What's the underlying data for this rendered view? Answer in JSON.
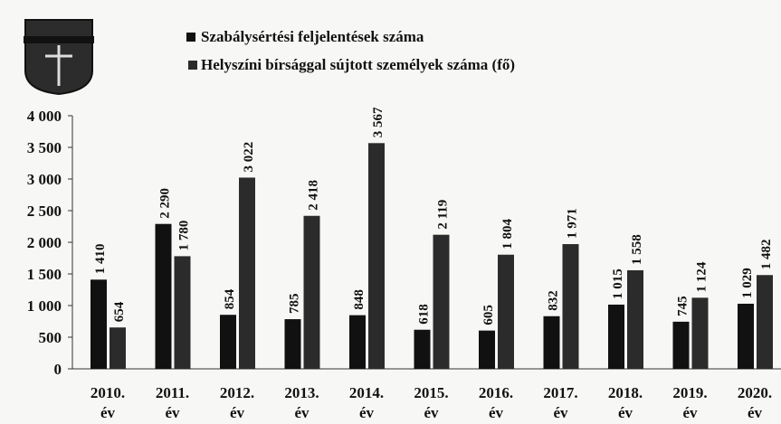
{
  "chart_data": {
    "type": "bar",
    "categories": [
      "2010. év",
      "2011. év",
      "2012. év",
      "2013. év",
      "2014. év",
      "2015. év",
      "2016. év",
      "2017. év",
      "2018. év",
      "2019. év",
      "2020. év"
    ],
    "series": [
      {
        "name": "Szabálysértési feljelentések száma",
        "color": "#111111",
        "values": [
          1410,
          2290,
          854,
          785,
          848,
          618,
          605,
          832,
          1015,
          745,
          1029
        ],
        "value_labels": [
          "1 410",
          "2 290",
          "854",
          "785",
          "848",
          "618",
          "605",
          "832",
          "1 015",
          "745",
          "1 029"
        ]
      },
      {
        "name": "Helyszíni bírsággal sújtott személyek száma (fő)",
        "color": "#2b2b2b",
        "values": [
          654,
          1780,
          3022,
          2418,
          3567,
          2119,
          1804,
          1971,
          1558,
          1124,
          1482
        ],
        "value_labels": [
          "654",
          "1 780",
          "3 022",
          "2 418",
          "3 567",
          "2 119",
          "1 804",
          "1 971",
          "1 558",
          "1 124",
          "1 482"
        ]
      }
    ],
    "ylim": [
      0,
      4000
    ],
    "yticks": [
      0,
      500,
      {
        "value": 1000,
        "label": "1 000"
      },
      {
        "value": 1500,
        "label": "1 500"
      },
      {
        "value": 2000,
        "label": "2 000"
      },
      {
        "value": 2500,
        "label": "2 500"
      },
      {
        "value": 3000,
        "label": "3 000"
      },
      {
        "value": 3500,
        "label": "3 500"
      },
      {
        "value": 4000,
        "label": "4 000"
      }
    ]
  }
}
